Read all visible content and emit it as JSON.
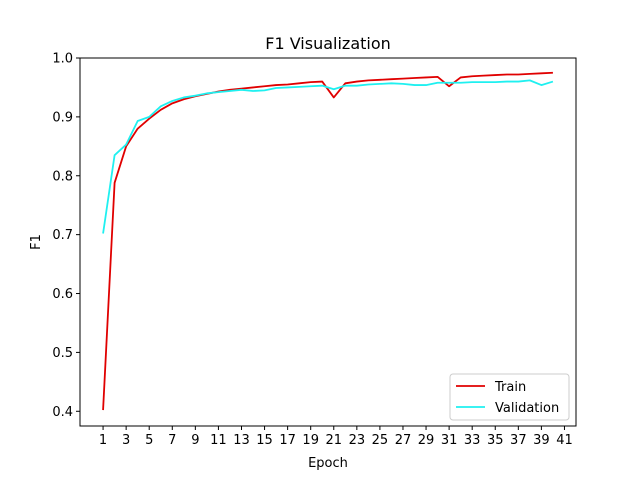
{
  "chart_data": {
    "type": "line",
    "title": "F1 Visualization",
    "xlabel": "Epoch",
    "ylabel": "F1",
    "xlim": [
      -1,
      42
    ],
    "ylim": [
      0.375,
      1.0
    ],
    "xticks": [
      1,
      3,
      5,
      7,
      9,
      11,
      13,
      15,
      17,
      19,
      21,
      23,
      25,
      27,
      29,
      31,
      33,
      35,
      37,
      39,
      41
    ],
    "yticks": [
      0.4,
      0.5,
      0.6,
      0.7,
      0.8,
      0.9,
      1.0
    ],
    "grid": false,
    "legend_position": "bottom-right",
    "x": [
      1,
      2,
      3,
      4,
      5,
      6,
      7,
      8,
      9,
      10,
      11,
      12,
      13,
      14,
      15,
      16,
      17,
      18,
      19,
      20,
      21,
      22,
      23,
      24,
      25,
      26,
      27,
      28,
      29,
      30,
      31,
      32,
      33,
      34,
      35,
      36,
      37,
      38,
      39,
      40
    ],
    "series": [
      {
        "name": "Train",
        "color": "#e00000",
        "values": [
          0.402,
          0.788,
          0.85,
          0.88,
          0.897,
          0.912,
          0.923,
          0.93,
          0.935,
          0.939,
          0.943,
          0.946,
          0.948,
          0.95,
          0.952,
          0.954,
          0.955,
          0.957,
          0.959,
          0.96,
          0.933,
          0.957,
          0.96,
          0.962,
          0.963,
          0.964,
          0.965,
          0.966,
          0.967,
          0.968,
          0.952,
          0.967,
          0.969,
          0.97,
          0.971,
          0.972,
          0.972,
          0.973,
          0.974,
          0.975
        ]
      },
      {
        "name": "Validation",
        "color": "#1ff0f0",
        "values": [
          0.702,
          0.835,
          0.853,
          0.893,
          0.9,
          0.918,
          0.927,
          0.933,
          0.936,
          0.94,
          0.942,
          0.944,
          0.946,
          0.944,
          0.945,
          0.949,
          0.95,
          0.951,
          0.952,
          0.953,
          0.947,
          0.953,
          0.953,
          0.955,
          0.956,
          0.957,
          0.956,
          0.954,
          0.954,
          0.958,
          0.958,
          0.958,
          0.959,
          0.959,
          0.959,
          0.96,
          0.96,
          0.962,
          0.954,
          0.96
        ]
      }
    ]
  }
}
